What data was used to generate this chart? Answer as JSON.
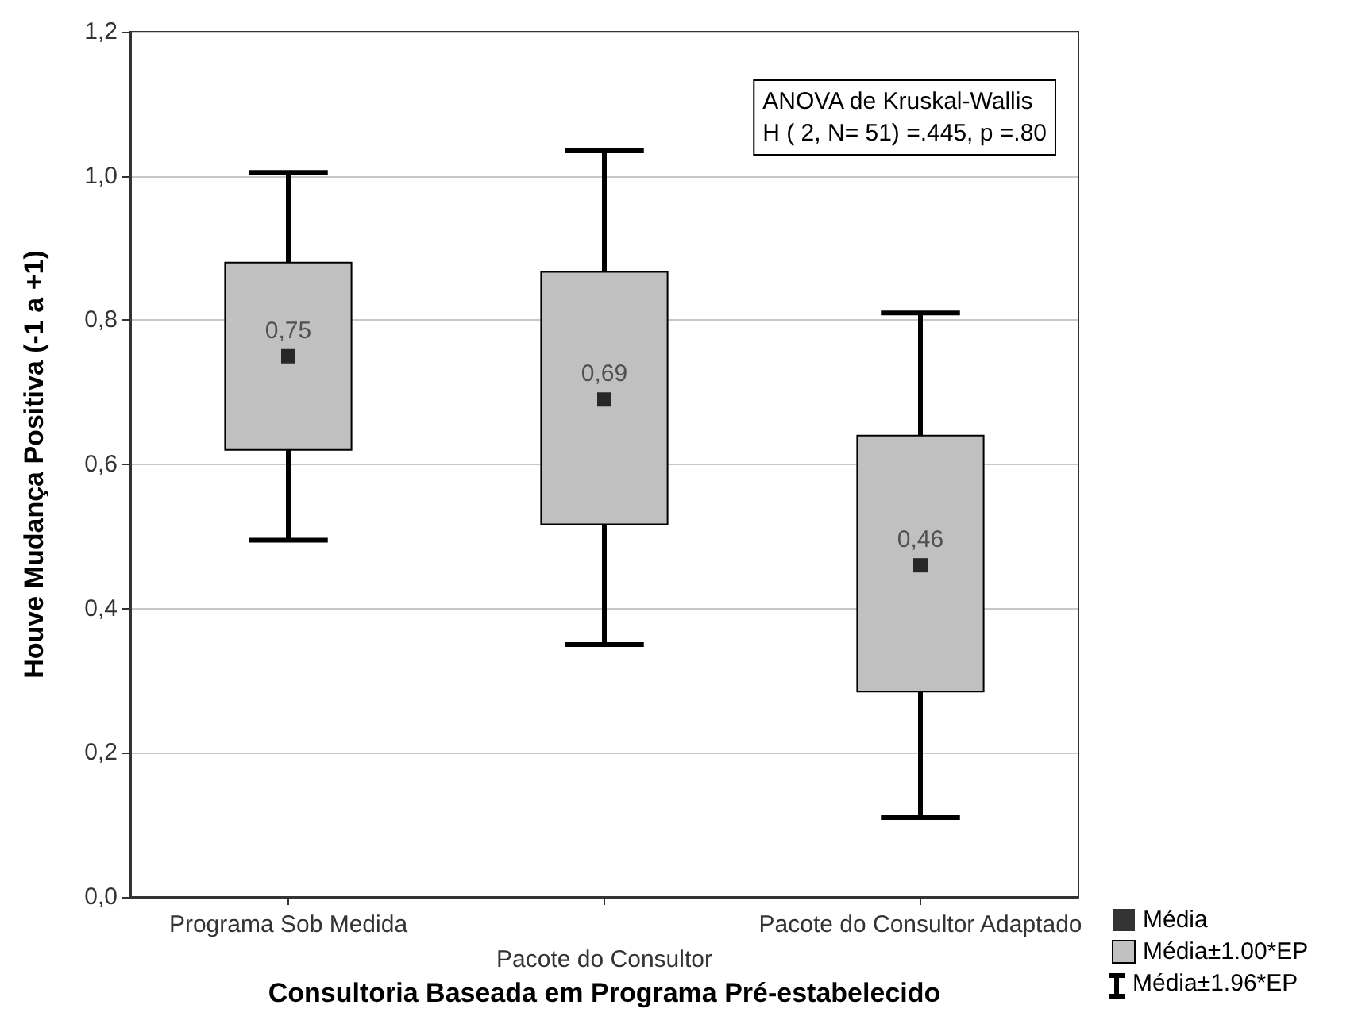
{
  "chart_data": {
    "type": "box",
    "xlabel": "Consultoria Baseada em Programa Pré-estabelecido",
    "ylabel": "Houve Mudança Positiva (-1 a +1)",
    "categories": [
      "Programa Sob Medida",
      "Pacote do Consultor",
      "Pacote do Consultor Adaptado"
    ],
    "series": [
      {
        "type": "box",
        "name": "Média±1.00*EP",
        "color": "#c0c0c0",
        "boxes": [
          {
            "low": 0.495,
            "q1": 0.62,
            "q3": 0.88,
            "high": 1.005
          },
          {
            "low": 0.35,
            "q1": 0.517,
            "q3": 0.867,
            "high": 1.035
          },
          {
            "low": 0.11,
            "q1": 0.285,
            "q3": 0.64,
            "high": 0.81
          }
        ]
      },
      {
        "type": "scatter",
        "name": "Média",
        "color": "#000000",
        "x": [
          "Programa Sob Medida",
          "Pacote do Consultor",
          "Pacote do Consultor Adaptado"
        ],
        "values": [
          0.75,
          0.69,
          0.46
        ],
        "value_labels": [
          "0,75",
          "0,69",
          "0,46"
        ]
      }
    ],
    "marker": "square",
    "ylim": [
      0,
      1.2
    ],
    "yticks": [
      {
        "value": 0,
        "label": "0,0"
      },
      {
        "value": 0.2,
        "label": "0,2"
      },
      {
        "value": 0.4,
        "label": "0,4"
      },
      {
        "value": 0.6,
        "label": "0,6"
      },
      {
        "value": 0.8,
        "label": "0,8"
      },
      {
        "value": 1,
        "label": "1,0"
      },
      {
        "value": 1.2,
        "label": "1,2"
      }
    ],
    "grid": "y",
    "legend": "bottom right",
    "annotations": [
      "ANOVA de Kruskal-Wallis\nH ( 2, N= 51) =.445, p =.80",
      "Média±1.96*EP"
    ]
  }
}
